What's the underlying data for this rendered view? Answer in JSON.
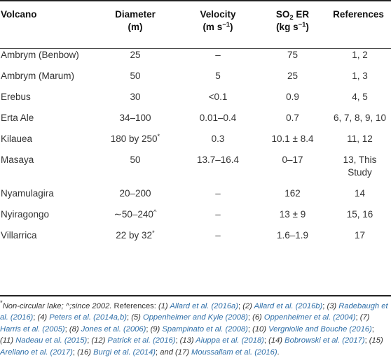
{
  "table": {
    "headers": [
      "Volcano",
      "Diameter",
      "Velocity",
      "SO",
      "References"
    ],
    "header_units": [
      "",
      "(m)",
      "(m s",
      "(kg s",
      ""
    ],
    "header_sups": [
      "",
      "",
      "−1",
      "−1",
      ""
    ],
    "header_unit_close": [
      "",
      "",
      ")",
      ")",
      ""
    ],
    "header_subs": [
      "",
      "",
      "",
      "2",
      ""
    ],
    "header_suffix": [
      "",
      "",
      "",
      " ER",
      ""
    ],
    "rows": [
      [
        "Ambrym (Benbow)",
        "25",
        "–",
        "75",
        "1, 2"
      ],
      [
        "Ambrym (Marum)",
        "50",
        "5",
        "25",
        "1, 3"
      ],
      [
        "Erebus",
        "30",
        "<0.1",
        "0.9",
        "4, 5"
      ],
      [
        "Erta Ale",
        "34–100",
        "0.01–0.4",
        "0.7",
        "6, 7, 8, 9, 10"
      ],
      [
        "Kilauea",
        "180 by 250",
        "0.3",
        "10.1 ± 8.4",
        "11, 12"
      ],
      [
        "Masaya",
        "50",
        "13.7–16.4",
        "0–17",
        "13, This Study"
      ],
      [
        "Nyamulagira",
        "20–200",
        "–",
        "162",
        "14"
      ],
      [
        "Nyiragongo",
        "∼50–240",
        "–",
        "13 ± 9",
        "15, 16"
      ],
      [
        "Villarrica",
        "22 by 32",
        "–",
        "1.6–1.9",
        "17"
      ]
    ],
    "row_sups": [
      "",
      "",
      "",
      "",
      "*",
      "",
      "",
      "^",
      "*"
    ]
  },
  "footnote": {
    "marker": "*",
    "note": "Non-circular lake; ^;since 2002.",
    "refs_intro": "References:",
    "sep": ";",
    "and": "and",
    "end": ".",
    "r1_label": "(1)",
    "r1": "Allard et al. (2016a)",
    "r2_label": "(2)",
    "r2": "Allard et al. (2016b)",
    "r3_label": "(3)",
    "r3": "Radebaugh et al. (2016)",
    "r4_label": "(4)",
    "r4": "Peters et al. (2014a,b)",
    "r5_label": "(5)",
    "r5": "Oppenheimer and Kyle (2008)",
    "r6_label": "(6)",
    "r6": "Oppenheimer et al. (2004)",
    "r7_label": "(7)",
    "r7": "Harris et al. (2005)",
    "r8_label": "(8)",
    "r8": "Jones et al. (2006)",
    "r9_label": "(9)",
    "r9": "Spampinato et al. (2008)",
    "r10_label": "(10)",
    "r10": "Vergniolle and Bouche (2016)",
    "r11_label": "(11)",
    "r11": "Nadeau et al. (2015)",
    "r12_label": "(12)",
    "r12": "Patrick et al. (2016)",
    "r13_label": "(13)",
    "r13": "Aiuppa et al. (2018)",
    "r14_label": "(14)",
    "r14": "Bobrowski et al. (2017)",
    "r15_label": "(15)",
    "r15": "Arellano et al. (2017)",
    "r16_label": "(16)",
    "r16": "Burgi et al. (2014)",
    "r17_label": "(17)",
    "r17": "Moussallam et al. (2016)"
  }
}
